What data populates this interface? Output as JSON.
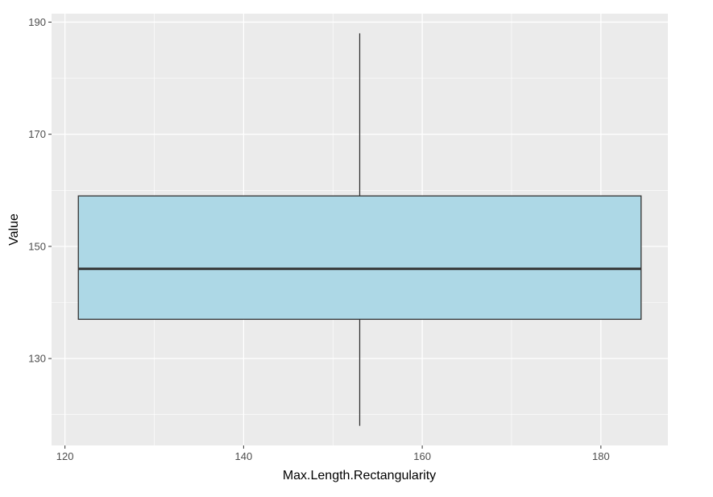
{
  "chart_data": {
    "type": "boxplot",
    "title": "",
    "xlabel": "Max.Length.Rectangularity",
    "ylabel": "Value",
    "xlim": [
      118.5,
      187.5
    ],
    "ylim": [
      114.5,
      191.5
    ],
    "x_ticks": [
      120,
      140,
      160,
      180
    ],
    "y_ticks": [
      130,
      150,
      170,
      190
    ],
    "x_minor_ticks": [
      130,
      150,
      170
    ],
    "y_minor_ticks": [
      120,
      140,
      160,
      180
    ],
    "grid": true,
    "legend": "none",
    "boxes": [
      {
        "x_left": 121.5,
        "x_right": 184.5,
        "x_whisker": 153,
        "min": 118,
        "q1": 137,
        "median": 146,
        "q3": 159,
        "max": 188
      }
    ],
    "colors": {
      "panel_background": "#ebebeb",
      "grid": "#ffffff",
      "box_fill": "#add8e6",
      "box_outline": "#333333"
    }
  }
}
